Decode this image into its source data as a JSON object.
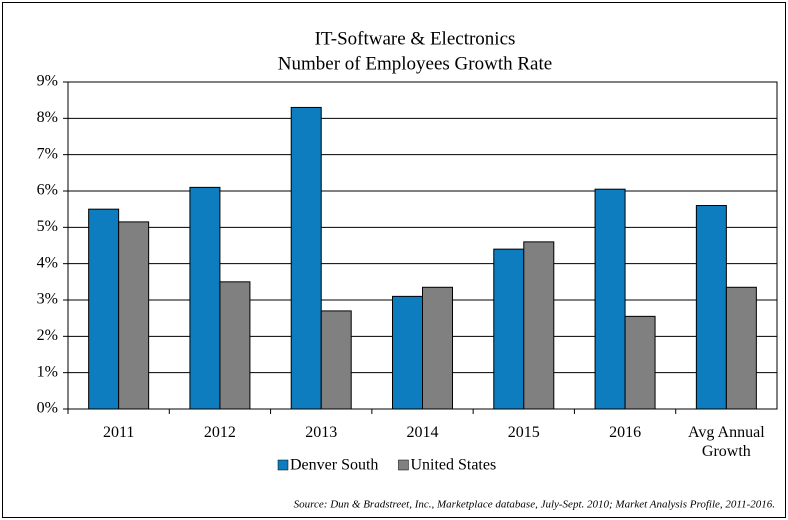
{
  "chart_data": {
    "type": "bar",
    "title": "IT-Software & Electronics",
    "subtitle": "Number of Employees Growth Rate",
    "categories": [
      "2011",
      "2012",
      "2013",
      "2014",
      "2015",
      "2016",
      "Avg Annual Growth"
    ],
    "series": [
      {
        "name": "Denver South",
        "color": "#0e7dc0",
        "values": [
          5.5,
          6.1,
          8.3,
          3.1,
          4.4,
          6.05,
          5.6
        ]
      },
      {
        "name": "United States",
        "color": "#808080",
        "values": [
          5.15,
          3.5,
          2.7,
          3.35,
          4.6,
          2.55,
          3.35
        ]
      }
    ],
    "ylim": [
      0,
      9
    ],
    "yticks": [
      {
        "value": 0,
        "label": "0%"
      },
      {
        "value": 1,
        "label": "1%"
      },
      {
        "value": 2,
        "label": "2%"
      },
      {
        "value": 3,
        "label": "3%"
      },
      {
        "value": 4,
        "label": "4%"
      },
      {
        "value": 5,
        "label": "5%"
      },
      {
        "value": 6,
        "label": "6%"
      },
      {
        "value": 7,
        "label": "7%"
      },
      {
        "value": 8,
        "label": "8%"
      },
      {
        "value": 9,
        "label": "9%"
      }
    ],
    "grid": true,
    "legend": "bottom",
    "source": "Source: Dun & Bradstreet, Inc., Marketplace database, July-Sept. 2010; Market Analysis Profile, 2011-2016."
  }
}
